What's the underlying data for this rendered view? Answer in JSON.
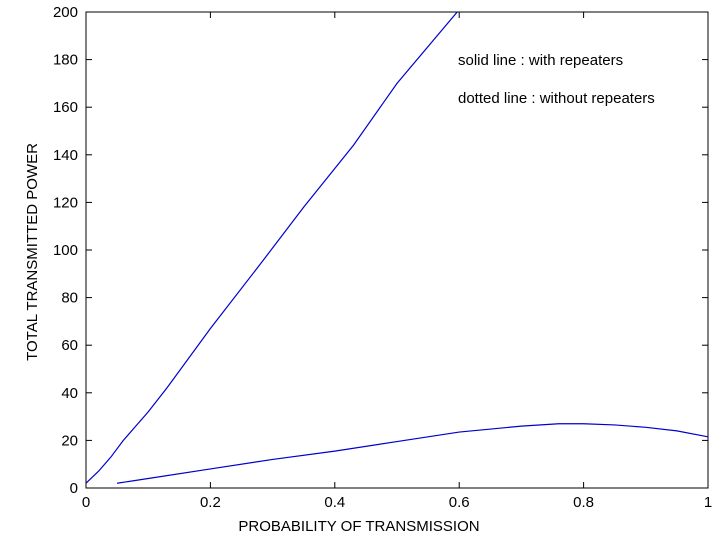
{
  "chart_data": {
    "type": "line",
    "title": "",
    "xlabel": "PROBABILITY OF TRANSMISSION",
    "ylabel": "TOTAL TRANSMITTED POWER",
    "xlim": [
      0,
      1
    ],
    "ylim": [
      0,
      200
    ],
    "xticks": [
      0,
      0.2,
      0.4,
      0.6,
      0.8,
      1
    ],
    "xtick_labels": [
      "0",
      "0.2",
      "0.4",
      "0.6",
      "0.8",
      "1"
    ],
    "yticks": [
      0,
      20,
      40,
      60,
      80,
      100,
      120,
      140,
      160,
      180,
      200
    ],
    "ytick_labels": [
      "0",
      "20",
      "40",
      "60",
      "80",
      "100",
      "120",
      "140",
      "160",
      "180",
      "200"
    ],
    "grid": false,
    "annotations": [
      "solid line : with repeaters",
      "dotted line : without repeaters"
    ],
    "series": [
      {
        "color": "#0000cc",
        "x": [
          0.0,
          0.02,
          0.04,
          0.06,
          0.08,
          0.1,
          0.13,
          0.2,
          0.28,
          0.35,
          0.43,
          0.5,
          0.6
        ],
        "y": [
          2,
          7,
          13,
          20,
          26,
          32,
          42,
          67,
          94,
          118,
          144,
          170,
          201
        ]
      },
      {
        "color": "#0000cc",
        "x": [
          0.05,
          0.1,
          0.2,
          0.3,
          0.4,
          0.5,
          0.6,
          0.7,
          0.76,
          0.8,
          0.85,
          0.9,
          0.95,
          1.0
        ],
        "y": [
          2,
          4,
          8,
          12,
          15.5,
          19.5,
          23.5,
          26,
          27,
          27,
          26.5,
          25.5,
          24,
          21.5
        ]
      }
    ]
  }
}
